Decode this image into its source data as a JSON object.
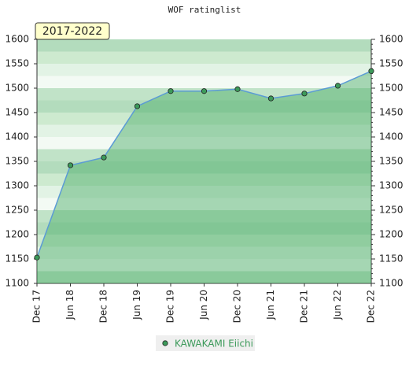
{
  "chart_data": {
    "type": "line",
    "title": "WOF ratinglist",
    "annotation": "2017-2022",
    "categories": [
      "Dec 17",
      "Jun 18",
      "Dec 18",
      "Jun 19",
      "Dec 19",
      "Jun 20",
      "Dec 20",
      "Jun 21",
      "Dec 21",
      "Jun 22",
      "Dec 22"
    ],
    "series": [
      {
        "name": "KAWAKAMI Eiichi",
        "color": "#5b9bd5",
        "marker_color": "#3c9a5a",
        "values": [
          1153,
          1342,
          1358,
          1463,
          1494,
          1494,
          1498,
          1479,
          1489,
          1505,
          1535
        ]
      }
    ],
    "ylim": [
      1100,
      1600
    ],
    "yticks": [
      1100,
      1150,
      1200,
      1250,
      1300,
      1350,
      1400,
      1450,
      1500,
      1550,
      1600
    ],
    "y2lim": [
      1100,
      1600
    ],
    "y2ticks": [
      1100,
      1150,
      1200,
      1250,
      1300,
      1350,
      1400,
      1450,
      1500,
      1550,
      1600
    ]
  }
}
